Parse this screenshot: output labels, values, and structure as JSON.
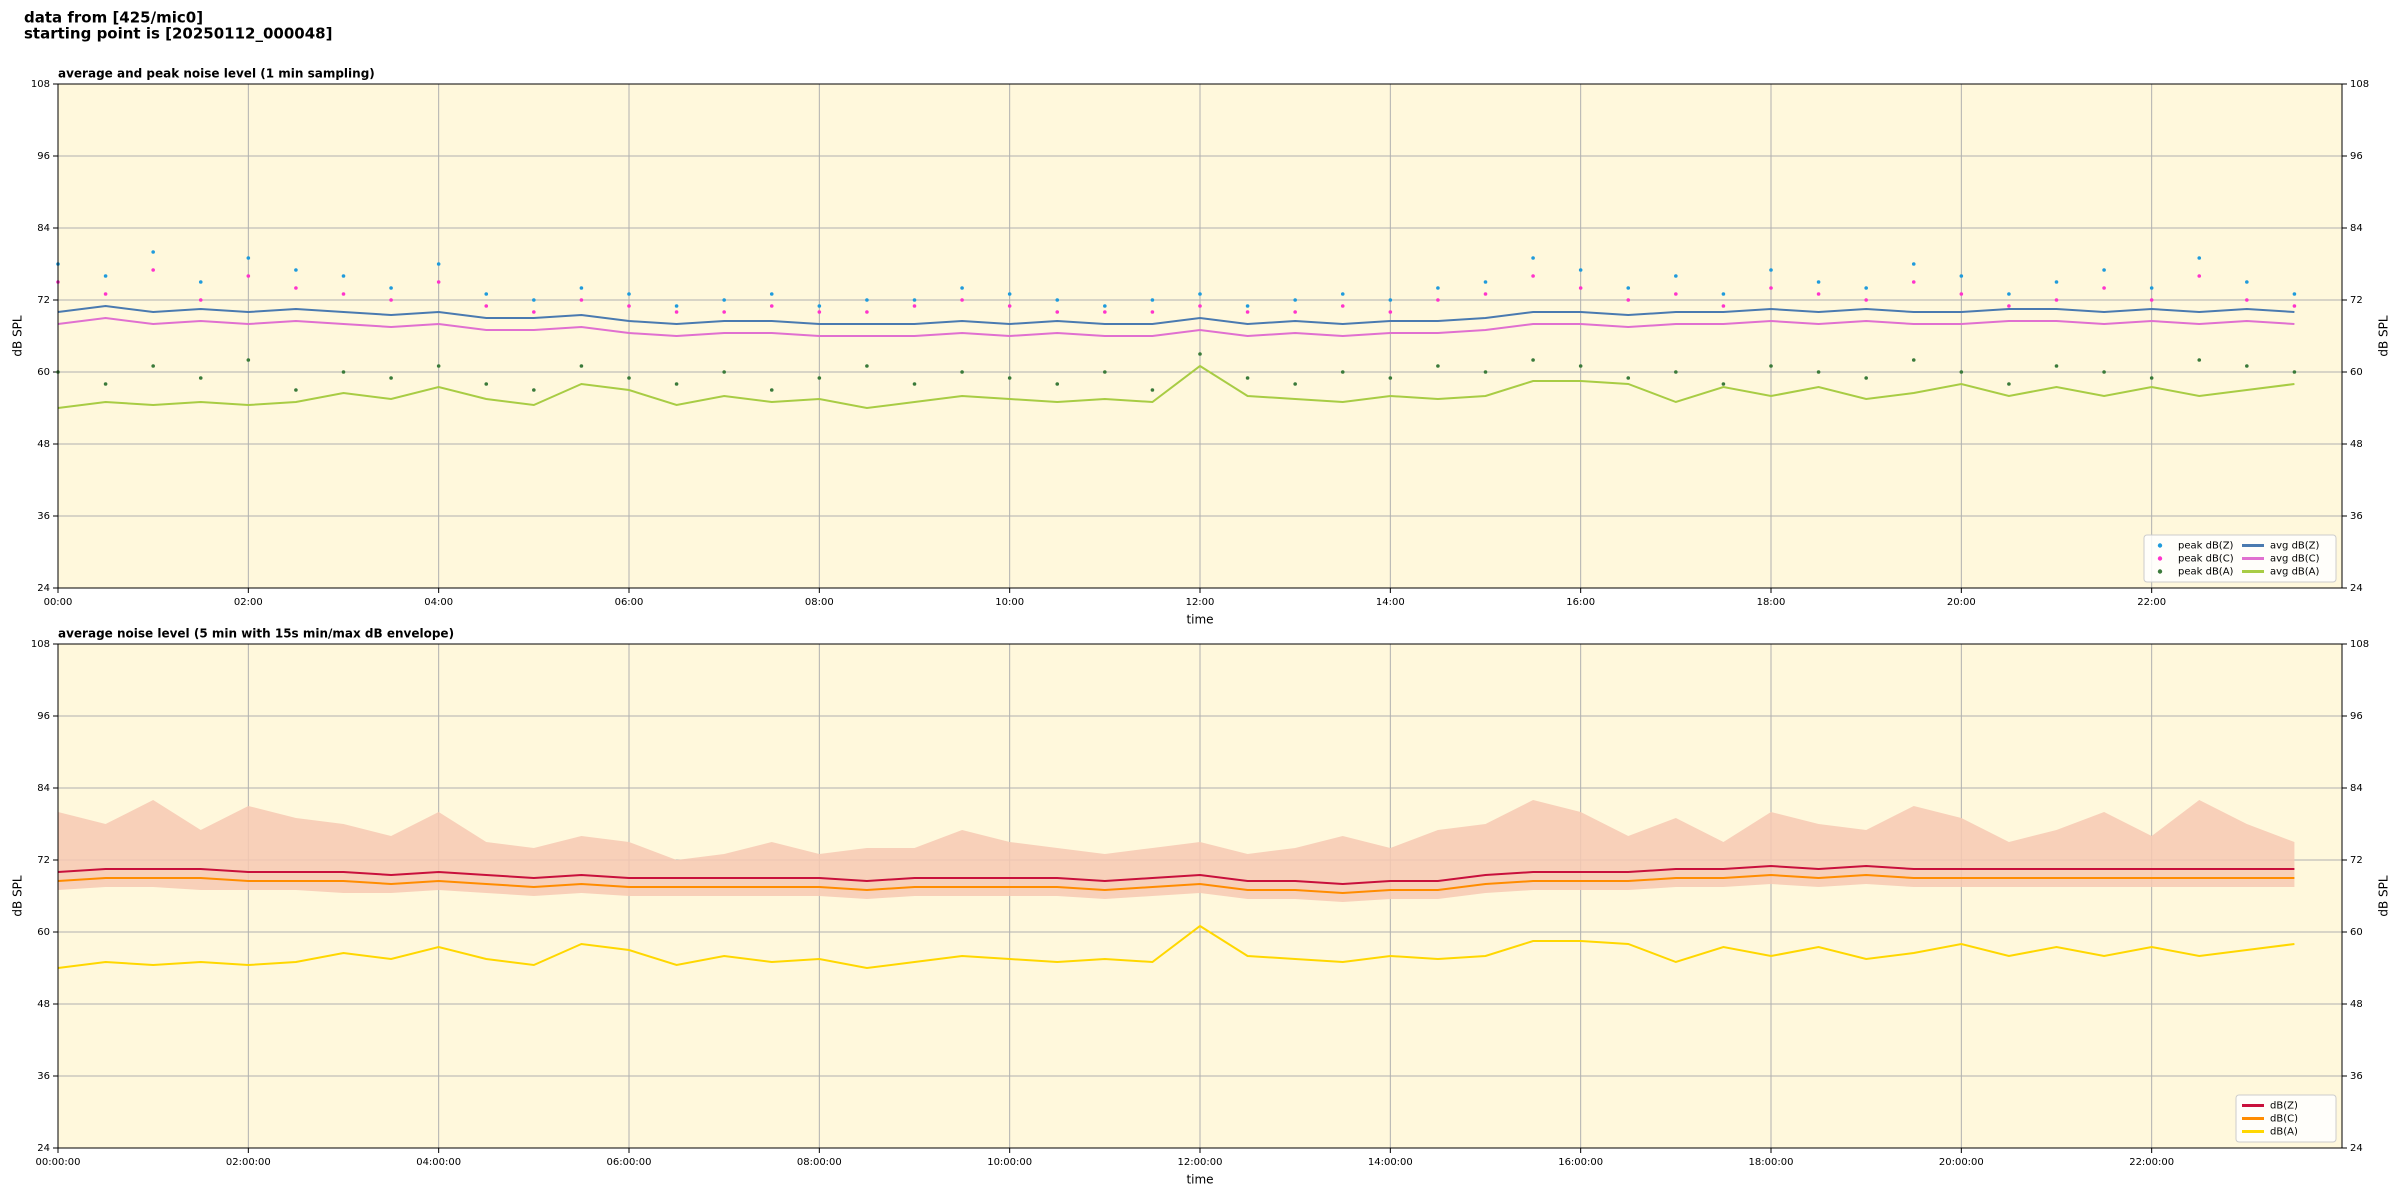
{
  "header": [
    "data from [425/mic0]",
    "starting point is [20250112_000048]"
  ],
  "chart_data": [
    {
      "type": "line",
      "title": "average and peak noise level (1 min sampling)",
      "xlabel": "time",
      "ylabel": "dB SPL",
      "y2label": "dB SPL",
      "background": "#fff8dc",
      "grid": true,
      "legend": "lower right",
      "legend_columns": 2,
      "xlim": [
        0,
        24
      ],
      "ylim": [
        24,
        108
      ],
      "y2lim": [
        24,
        108
      ],
      "yticks": [
        24,
        36,
        48,
        60,
        72,
        84,
        96,
        108
      ],
      "y2ticks": [
        24,
        36,
        48,
        60,
        72,
        84,
        96,
        108
      ],
      "xticks": [
        {
          "value": 0,
          "label": "00:00"
        },
        {
          "value": 2,
          "label": "02:00"
        },
        {
          "value": 4,
          "label": "04:00"
        },
        {
          "value": 6,
          "label": "06:00"
        },
        {
          "value": 8,
          "label": "08:00"
        },
        {
          "value": 10,
          "label": "10:00"
        },
        {
          "value": 12,
          "label": "12:00"
        },
        {
          "value": 14,
          "label": "14:00"
        },
        {
          "value": 16,
          "label": "16:00"
        },
        {
          "value": 18,
          "label": "18:00"
        },
        {
          "value": 20,
          "label": "20:00"
        },
        {
          "value": 22,
          "label": "22:00"
        }
      ],
      "x": [
        0,
        0.5,
        1,
        1.5,
        2,
        2.5,
        3,
        3.5,
        4,
        4.5,
        5,
        5.5,
        6,
        6.5,
        7,
        7.5,
        8,
        8.5,
        9,
        9.5,
        10,
        10.5,
        11,
        11.5,
        12,
        12.5,
        13,
        13.5,
        14,
        14.5,
        15,
        15.5,
        16,
        16.5,
        17,
        17.5,
        18,
        18.5,
        19,
        19.5,
        20,
        20.5,
        21,
        21.5,
        22,
        22.5,
        23,
        23.5
      ],
      "series": [
        {
          "name": "peak dB(Z)",
          "color": "#1f9bdc",
          "marker": "dot",
          "values": [
            78,
            76,
            80,
            75,
            79,
            77,
            76,
            74,
            78,
            73,
            72,
            74,
            73,
            71,
            72,
            73,
            71,
            72,
            72,
            74,
            73,
            72,
            71,
            72,
            73,
            71,
            72,
            73,
            72,
            74,
            75,
            79,
            77,
            74,
            76,
            73,
            77,
            75,
            74,
            78,
            76,
            73,
            75,
            77,
            74,
            79,
            75,
            73
          ]
        },
        {
          "name": "peak dB(C)",
          "color": "#ff33cc",
          "marker": "dot",
          "values": [
            75,
            73,
            77,
            72,
            76,
            74,
            73,
            72,
            75,
            71,
            70,
            72,
            71,
            70,
            70,
            71,
            70,
            70,
            71,
            72,
            71,
            70,
            70,
            70,
            71,
            70,
            70,
            71,
            70,
            72,
            73,
            76,
            74,
            72,
            73,
            71,
            74,
            73,
            72,
            75,
            73,
            71,
            72,
            74,
            72,
            76,
            72,
            71
          ]
        },
        {
          "name": "peak dB(A)",
          "color": "#3a7a3a",
          "marker": "dot",
          "values": [
            60,
            58,
            61,
            59,
            62,
            57,
            60,
            59,
            61,
            58,
            57,
            61,
            59,
            58,
            60,
            57,
            59,
            61,
            58,
            60,
            59,
            58,
            60,
            57,
            63,
            59,
            58,
            60,
            59,
            61,
            60,
            62,
            61,
            59,
            60,
            58,
            61,
            60,
            59,
            62,
            60,
            58,
            61,
            60,
            59,
            62,
            61,
            60
          ]
        },
        {
          "name": "avg dB(Z)",
          "color": "#4a7ab0",
          "marker": "line",
          "values": [
            70,
            71,
            70,
            70.5,
            70,
            70.5,
            70,
            69.5,
            70,
            69,
            69,
            69.5,
            68.5,
            68,
            68.5,
            68.5,
            68,
            68,
            68,
            68.5,
            68,
            68.5,
            68,
            68,
            69,
            68,
            68.5,
            68,
            68.5,
            68.5,
            69,
            70,
            70,
            69.5,
            70,
            70,
            70.5,
            70,
            70.5,
            70,
            70,
            70.5,
            70.5,
            70,
            70.5,
            70,
            70.5,
            70
          ]
        },
        {
          "name": "avg dB(C)",
          "color": "#e070d0",
          "marker": "line",
          "values": [
            68,
            69,
            68,
            68.5,
            68,
            68.5,
            68,
            67.5,
            68,
            67,
            67,
            67.5,
            66.5,
            66,
            66.5,
            66.5,
            66,
            66,
            66,
            66.5,
            66,
            66.5,
            66,
            66,
            67,
            66,
            66.5,
            66,
            66.5,
            66.5,
            67,
            68,
            68,
            67.5,
            68,
            68,
            68.5,
            68,
            68.5,
            68,
            68,
            68.5,
            68.5,
            68,
            68.5,
            68,
            68.5,
            68
          ]
        },
        {
          "name": "avg dB(A)",
          "color": "#a8cc44",
          "marker": "line",
          "values": [
            54,
            55,
            54.5,
            55,
            54.5,
            55,
            56.5,
            55.5,
            57.5,
            55.5,
            54.5,
            58,
            57,
            54.5,
            56,
            55,
            55.5,
            54,
            55,
            56,
            55.5,
            55,
            55.5,
            55,
            61,
            56,
            55.5,
            55,
            56,
            55.5,
            56,
            58.5,
            58.5,
            58,
            55,
            57.5,
            56,
            57.5,
            55.5,
            56.5,
            58,
            56,
            57.5,
            56,
            57.5,
            56,
            57,
            58
          ]
        }
      ]
    },
    {
      "type": "line",
      "title": "average noise level (5 min with 15s min/max dB envelope)",
      "xlabel": "time",
      "ylabel": "dB SPL",
      "y2label": "dB SPL",
      "background": "#fff8dc",
      "grid": true,
      "legend": "lower right",
      "legend_columns": 1,
      "xlim": [
        0,
        24
      ],
      "ylim": [
        24,
        108
      ],
      "y2lim": [
        24,
        108
      ],
      "yticks": [
        24,
        36,
        48,
        60,
        72,
        84,
        96,
        108
      ],
      "y2ticks": [
        24,
        36,
        48,
        60,
        72,
        84,
        96,
        108
      ],
      "xticks": [
        {
          "value": 0,
          "label": "00:00:00"
        },
        {
          "value": 2,
          "label": "02:00:00"
        },
        {
          "value": 4,
          "label": "04:00:00"
        },
        {
          "value": 6,
          "label": "06:00:00"
        },
        {
          "value": 8,
          "label": "08:00:00"
        },
        {
          "value": 10,
          "label": "10:00:00"
        },
        {
          "value": 12,
          "label": "12:00:00"
        },
        {
          "value": 14,
          "label": "14:00:00"
        },
        {
          "value": 16,
          "label": "16:00:00"
        },
        {
          "value": 18,
          "label": "18:00:00"
        },
        {
          "value": 20,
          "label": "20:00:00"
        },
        {
          "value": 22,
          "label": "22:00:00"
        }
      ],
      "x": [
        0,
        0.5,
        1,
        1.5,
        2,
        2.5,
        3,
        3.5,
        4,
        4.5,
        5,
        5.5,
        6,
        6.5,
        7,
        7.5,
        8,
        8.5,
        9,
        9.5,
        10,
        10.5,
        11,
        11.5,
        12,
        12.5,
        13,
        13.5,
        14,
        14.5,
        15,
        15.5,
        16,
        16.5,
        17,
        17.5,
        18,
        18.5,
        19,
        19.5,
        20,
        20.5,
        21,
        21.5,
        22,
        22.5,
        23,
        23.5
      ],
      "band": {
        "color": "#f7c9b3",
        "upper": [
          80,
          78,
          82,
          77,
          81,
          79,
          78,
          76,
          80,
          75,
          74,
          76,
          75,
          72,
          73,
          75,
          73,
          74,
          74,
          77,
          75,
          74,
          73,
          74,
          75,
          73,
          74,
          76,
          74,
          77,
          78,
          82,
          80,
          76,
          79,
          75,
          80,
          78,
          77,
          81,
          79,
          75,
          77,
          80,
          76,
          82,
          78,
          75
        ],
        "lower": [
          67,
          67.5,
          67.5,
          67,
          67,
          67,
          66.5,
          66.5,
          67,
          66.5,
          66,
          66.5,
          66,
          66,
          66,
          66,
          66,
          65.5,
          66,
          66,
          66,
          66,
          65.5,
          66,
          66.5,
          65.5,
          65.5,
          65,
          65.5,
          65.5,
          66.5,
          67,
          67,
          67,
          67.5,
          67.5,
          68,
          67.5,
          68,
          67.5,
          67.5,
          67.5,
          67.5,
          67.5,
          67.5,
          67.5,
          67.5,
          67.5
        ]
      },
      "series": [
        {
          "name": "dB(Z)",
          "color": "#c8103c",
          "marker": "line",
          "values": [
            70,
            70.5,
            70.5,
            70.5,
            70,
            70,
            70,
            69.5,
            70,
            69.5,
            69,
            69.5,
            69,
            69,
            69,
            69,
            69,
            68.5,
            69,
            69,
            69,
            69,
            68.5,
            69,
            69.5,
            68.5,
            68.5,
            68,
            68.5,
            68.5,
            69.5,
            70,
            70,
            70,
            70.5,
            70.5,
            71,
            70.5,
            71,
            70.5,
            70.5,
            70.5,
            70.5,
            70.5,
            70.5,
            70.5,
            70.5,
            70.5
          ]
        },
        {
          "name": "dB(C)",
          "color": "#ff8c00",
          "marker": "line",
          "values": [
            68.5,
            69,
            69,
            69,
            68.5,
            68.5,
            68.5,
            68,
            68.5,
            68,
            67.5,
            68,
            67.5,
            67.5,
            67.5,
            67.5,
            67.5,
            67,
            67.5,
            67.5,
            67.5,
            67.5,
            67,
            67.5,
            68,
            67,
            67,
            66.5,
            67,
            67,
            68,
            68.5,
            68.5,
            68.5,
            69,
            69,
            69.5,
            69,
            69.5,
            69,
            69,
            69,
            69,
            69,
            69,
            69,
            69,
            69
          ]
        },
        {
          "name": "dB(A)",
          "color": "#ffd700",
          "marker": "line",
          "values": [
            54,
            55,
            54.5,
            55,
            54.5,
            55,
            56.5,
            55.5,
            57.5,
            55.5,
            54.5,
            58,
            57,
            54.5,
            56,
            55,
            55.5,
            54,
            55,
            56,
            55.5,
            55,
            55.5,
            55,
            61,
            56,
            55.5,
            55,
            56,
            55.5,
            56,
            58.5,
            58.5,
            58,
            55,
            57.5,
            56,
            57.5,
            55.5,
            56.5,
            58,
            56,
            57.5,
            56,
            57.5,
            56,
            57,
            58
          ]
        }
      ]
    }
  ]
}
